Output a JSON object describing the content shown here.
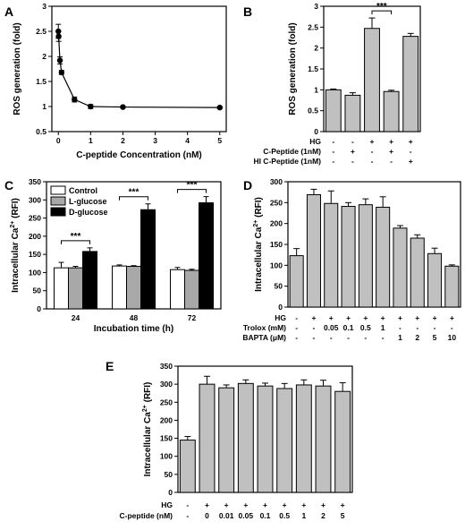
{
  "figure": {
    "panels": [
      {
        "letter": "A"
      },
      {
        "letter": "B"
      },
      {
        "letter": "C"
      },
      {
        "letter": "D"
      },
      {
        "letter": "E"
      }
    ]
  },
  "chart_data": [
    {
      "panel": "A",
      "type": "line",
      "xlabel": "C-peptide Concentration (nM)",
      "ylabel": "ROS generation (fold)",
      "xlim": [
        -0.2,
        5.2
      ],
      "ylim": [
        0.5,
        3.0
      ],
      "xticks": [
        0,
        1,
        2,
        3,
        4,
        5
      ],
      "yticks": [
        0.5,
        1.0,
        1.5,
        2.0,
        2.5,
        3.0
      ],
      "series": [
        {
          "x": [
            0,
            0.01,
            0.05,
            0.1,
            0.5,
            1,
            2,
            5
          ],
          "y": [
            2.5,
            2.4,
            1.92,
            1.68,
            1.14,
            1.0,
            0.99,
            0.98
          ],
          "err": [
            0.14,
            0.1,
            0.07,
            0.04,
            0.05,
            0.04,
            0.02,
            0.02
          ]
        }
      ],
      "grid": false
    },
    {
      "panel": "B",
      "type": "bar",
      "ylabel": "ROS generation (fold)",
      "ylim": [
        0,
        3.0
      ],
      "yticks": [
        0.0,
        0.5,
        1.0,
        1.5,
        2.0,
        2.5,
        3.0
      ],
      "values": [
        1.0,
        0.87,
        2.47,
        0.96,
        2.28
      ],
      "errors": [
        0.02,
        0.06,
        0.25,
        0.03,
        0.07
      ],
      "bar_color": "#c0c0c0",
      "table_rows": [
        {
          "label": "HG",
          "cells": [
            "-",
            "-",
            "+",
            "+",
            "+"
          ]
        },
        {
          "label": "C-Peptide (1nM)",
          "cells": [
            "-",
            "+",
            "-",
            "+",
            "-"
          ]
        },
        {
          "label": "HI C-Peptide (1nM)",
          "cells": [
            "-",
            "-",
            "-",
            "-",
            "+"
          ]
        }
      ],
      "significance": [
        {
          "from": 2,
          "to": 3,
          "label": "***"
        }
      ]
    },
    {
      "panel": "C",
      "type": "bar",
      "xlabel": "Incubation time (h)",
      "ylabel_prefix": "Intracellular Ca",
      "ylabel_sup": "2+",
      "ylabel_suffix": " (RFI)",
      "ylim": [
        0,
        350
      ],
      "yticks": [
        0,
        50,
        100,
        150,
        200,
        250,
        300,
        350
      ],
      "categories": [
        "24",
        "48",
        "72"
      ],
      "series": [
        {
          "name": "Control",
          "color": "#ffffff",
          "values": [
            113,
            118,
            108
          ],
          "errors": [
            15,
            3,
            6
          ]
        },
        {
          "name": "L-glucose",
          "color": "#a8a8a8",
          "values": [
            113,
            117,
            106
          ],
          "errors": [
            4,
            2,
            3
          ]
        },
        {
          "name": "D-glucose",
          "color": "#000000",
          "values": [
            158,
            273,
            292
          ],
          "errors": [
            10,
            16,
            17
          ]
        }
      ],
      "significance": [
        {
          "group": 0,
          "label": "***"
        },
        {
          "group": 1,
          "label": "***"
        },
        {
          "group": 2,
          "label": "***"
        }
      ],
      "legend": "top-left"
    },
    {
      "panel": "D",
      "type": "bar",
      "ylabel_prefix": "Intracellular Ca",
      "ylabel_sup": "2+",
      "ylabel_suffix": " (RFI)",
      "ylim": [
        0,
        300
      ],
      "yticks": [
        0,
        50,
        100,
        150,
        200,
        250,
        300
      ],
      "values": [
        123,
        269,
        248,
        241,
        245,
        239,
        189,
        165,
        128,
        98
      ],
      "errors": [
        17,
        13,
        30,
        9,
        14,
        25,
        6,
        8,
        13,
        3
      ],
      "bar_color": "#c0c0c0",
      "table_rows": [
        {
          "label": "HG",
          "cells": [
            "-",
            "+",
            "+",
            "+",
            "+",
            "+",
            "+",
            "+",
            "+",
            "+"
          ]
        },
        {
          "label": "Trolox (mM)",
          "cells": [
            "-",
            "-",
            "0.05",
            "0.1",
            "0.5",
            "1",
            "-",
            "-",
            "-",
            "-"
          ]
        },
        {
          "label": "BAPTA (μM)",
          "cells": [
            "-",
            "-",
            "-",
            "-",
            "-",
            "-",
            "1",
            "2",
            "5",
            "10"
          ]
        }
      ]
    },
    {
      "panel": "E",
      "type": "bar",
      "ylabel_prefix": "Intracellular Ca",
      "ylabel_sup": "2+",
      "ylabel_suffix": " (RFI)",
      "ylim": [
        0,
        350
      ],
      "yticks": [
        0,
        50,
        100,
        150,
        200,
        250,
        300,
        350
      ],
      "values": [
        145,
        300,
        290,
        302,
        295,
        288,
        298,
        295,
        280
      ],
      "errors": [
        10,
        22,
        8,
        10,
        8,
        14,
        14,
        16,
        24
      ],
      "bar_color": "#c0c0c0",
      "table_rows": [
        {
          "label": "HG",
          "cells": [
            "-",
            "+",
            "+",
            "+",
            "+",
            "+",
            "+",
            "+",
            "+"
          ]
        },
        {
          "label": "C-peptide (nM)",
          "cells": [
            "-",
            "0",
            "0.01",
            "0.05",
            "0.1",
            "0.5",
            "1",
            "2",
            "5"
          ]
        }
      ]
    }
  ]
}
